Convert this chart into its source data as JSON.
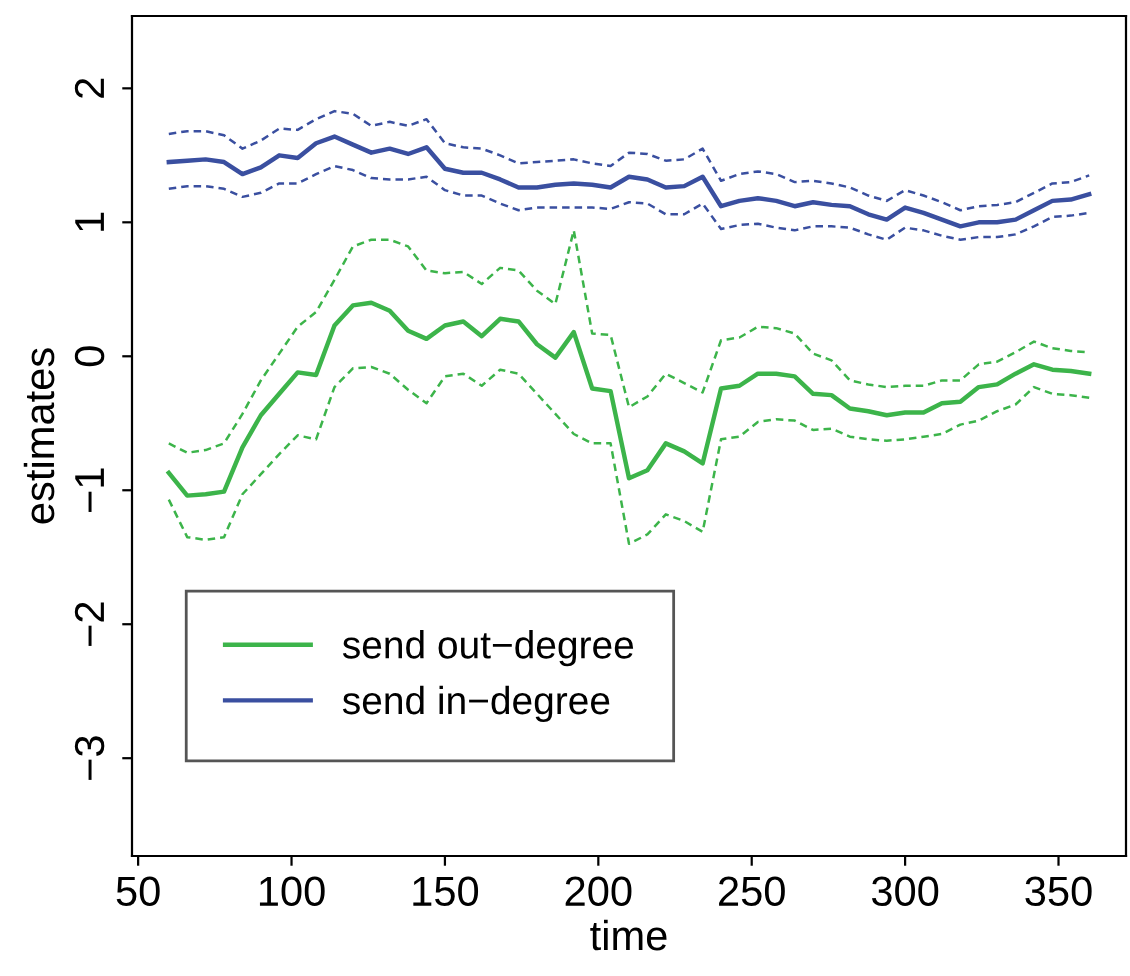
{
  "chart_data": {
    "type": "line",
    "xlabel": "time",
    "ylabel": "estimates",
    "x": [
      60,
      66,
      72,
      78,
      84,
      90,
      96,
      102,
      108,
      114,
      120,
      126,
      132,
      138,
      144,
      150,
      156,
      162,
      168,
      174,
      180,
      186,
      192,
      198,
      204,
      210,
      216,
      222,
      228,
      234,
      240,
      246,
      252,
      258,
      264,
      270,
      276,
      282,
      288,
      294,
      300,
      306,
      312,
      318,
      324,
      330,
      336,
      342,
      348,
      354,
      360
    ],
    "series": [
      {
        "name": "send out−degree",
        "color": "#3cb44a",
        "values": [
          -0.87,
          -1.04,
          -1.03,
          -1.01,
          -0.68,
          -0.44,
          -0.28,
          -0.12,
          -0.14,
          0.23,
          0.38,
          0.4,
          0.34,
          0.19,
          0.13,
          0.23,
          0.26,
          0.15,
          0.28,
          0.26,
          0.09,
          -0.01,
          0.18,
          -0.24,
          -0.26,
          -0.91,
          -0.85,
          -0.65,
          -0.71,
          -0.8,
          -0.24,
          -0.22,
          -0.13,
          -0.13,
          -0.15,
          -0.28,
          -0.29,
          -0.39,
          -0.41,
          -0.44,
          -0.42,
          -0.42,
          -0.35,
          -0.34,
          -0.23,
          -0.21,
          -0.13,
          -0.06,
          -0.1,
          -0.11,
          -0.13
        ]
      },
      {
        "color": "#3cb44a",
        "line_style": "dashed",
        "values": [
          -0.65,
          -0.72,
          -0.7,
          -0.65,
          -0.43,
          -0.18,
          0.02,
          0.22,
          0.33,
          0.57,
          0.82,
          0.87,
          0.87,
          0.82,
          0.64,
          0.62,
          0.63,
          0.54,
          0.66,
          0.64,
          0.49,
          0.39,
          0.94,
          0.17,
          0.16,
          -0.38,
          -0.3,
          -0.13,
          -0.2,
          -0.27,
          0.12,
          0.14,
          0.22,
          0.21,
          0.17,
          0.02,
          -0.03,
          -0.18,
          -0.21,
          -0.23,
          -0.22,
          -0.22,
          -0.18,
          -0.18,
          -0.06,
          -0.04,
          0.03,
          0.11,
          0.06,
          0.04,
          0.03
        ]
      },
      {
        "color": "#3cb44a",
        "line_style": "dashed",
        "values": [
          -1.07,
          -1.35,
          -1.37,
          -1.35,
          -1.03,
          -0.88,
          -0.73,
          -0.59,
          -0.62,
          -0.23,
          -0.09,
          -0.08,
          -0.13,
          -0.25,
          -0.35,
          -0.15,
          -0.13,
          -0.22,
          -0.1,
          -0.13,
          -0.28,
          -0.43,
          -0.58,
          -0.65,
          -0.65,
          -1.4,
          -1.33,
          -1.18,
          -1.23,
          -1.31,
          -0.62,
          -0.6,
          -0.49,
          -0.47,
          -0.48,
          -0.55,
          -0.54,
          -0.6,
          -0.62,
          -0.63,
          -0.62,
          -0.6,
          -0.58,
          -0.51,
          -0.48,
          -0.41,
          -0.36,
          -0.23,
          -0.28,
          -0.29,
          -0.31
        ]
      },
      {
        "name": "send in−degree",
        "color": "#3a4fa0",
        "values": [
          1.45,
          1.46,
          1.47,
          1.45,
          1.36,
          1.41,
          1.5,
          1.48,
          1.59,
          1.64,
          1.58,
          1.52,
          1.55,
          1.51,
          1.56,
          1.4,
          1.37,
          1.37,
          1.32,
          1.26,
          1.26,
          1.28,
          1.29,
          1.28,
          1.26,
          1.34,
          1.32,
          1.26,
          1.27,
          1.34,
          1.12,
          1.16,
          1.18,
          1.16,
          1.12,
          1.15,
          1.13,
          1.12,
          1.06,
          1.02,
          1.11,
          1.07,
          1.02,
          0.97,
          1.0,
          1.0,
          1.02,
          1.09,
          1.16,
          1.17,
          1.21
        ]
      },
      {
        "color": "#3a4fa0",
        "line_style": "dashed",
        "values": [
          1.66,
          1.68,
          1.68,
          1.65,
          1.55,
          1.61,
          1.7,
          1.69,
          1.77,
          1.83,
          1.81,
          1.72,
          1.75,
          1.72,
          1.77,
          1.59,
          1.56,
          1.55,
          1.5,
          1.44,
          1.45,
          1.46,
          1.47,
          1.44,
          1.42,
          1.52,
          1.51,
          1.46,
          1.47,
          1.55,
          1.31,
          1.36,
          1.38,
          1.36,
          1.3,
          1.31,
          1.29,
          1.26,
          1.2,
          1.16,
          1.24,
          1.2,
          1.15,
          1.09,
          1.12,
          1.13,
          1.15,
          1.22,
          1.29,
          1.3,
          1.35
        ]
      },
      {
        "color": "#3a4fa0",
        "line_style": "dashed",
        "values": [
          1.25,
          1.27,
          1.27,
          1.25,
          1.19,
          1.22,
          1.29,
          1.29,
          1.36,
          1.42,
          1.39,
          1.33,
          1.32,
          1.32,
          1.34,
          1.24,
          1.2,
          1.2,
          1.14,
          1.09,
          1.11,
          1.11,
          1.11,
          1.11,
          1.1,
          1.15,
          1.14,
          1.06,
          1.06,
          1.14,
          0.95,
          0.98,
          0.99,
          0.96,
          0.94,
          0.97,
          0.97,
          0.96,
          0.91,
          0.87,
          0.96,
          0.94,
          0.9,
          0.87,
          0.89,
          0.89,
          0.91,
          0.97,
          1.04,
          1.05,
          1.07
        ]
      }
    ],
    "xlim": [
      48,
      372
    ],
    "xticks": [
      50,
      100,
      150,
      200,
      250,
      300,
      350
    ],
    "ylim": [
      -3.73,
      2.54
    ],
    "yticks": [
      -3,
      -2,
      -1,
      0,
      1,
      2
    ],
    "grid": false,
    "legend": "bottom left",
    "line_style": "solid",
    "marker": "none"
  }
}
